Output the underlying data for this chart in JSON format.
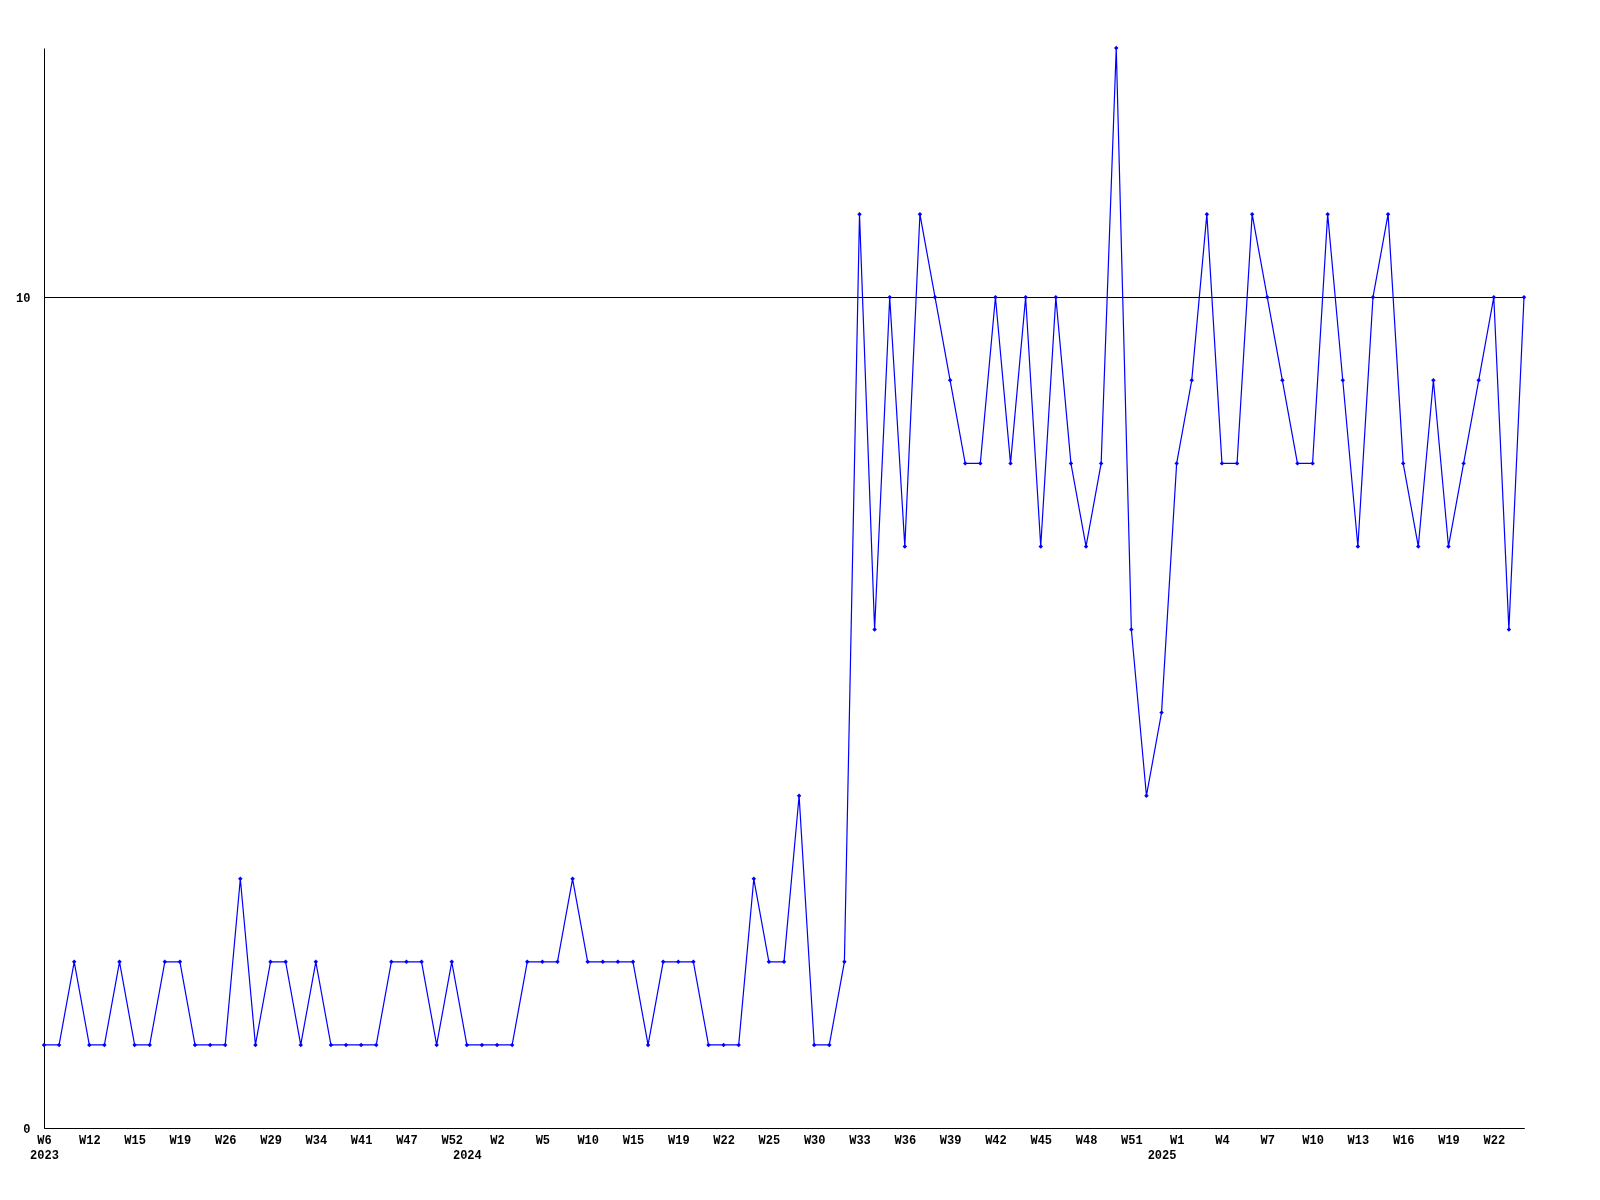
{
  "chart_data": {
    "type": "line",
    "categories": [
      "W6\n2023",
      null,
      null,
      "W12",
      null,
      null,
      "W15",
      null,
      null,
      "W19",
      null,
      null,
      "W26",
      null,
      null,
      "W29",
      null,
      null,
      "W34",
      null,
      null,
      "W41",
      null,
      null,
      "W47",
      null,
      null,
      "W52",
      "\n2024",
      null,
      "W2",
      null,
      null,
      "W5",
      null,
      null,
      "W10",
      null,
      null,
      "W15",
      null,
      null,
      "W19",
      null,
      null,
      "W22",
      null,
      null,
      "W25",
      null,
      null,
      "W30",
      null,
      null,
      "W33",
      null,
      null,
      "W36",
      null,
      null,
      "W39",
      null,
      null,
      "W42",
      null,
      null,
      "W45",
      null,
      null,
      "W48",
      null,
      null,
      "W51",
      null,
      "\n2025",
      "W1",
      null,
      null,
      "W4",
      null,
      null,
      "W7",
      null,
      null,
      "W10",
      null,
      null,
      "W13",
      null,
      null,
      "W16",
      null,
      null,
      "W19",
      null,
      null,
      "W22",
      null,
      null
    ],
    "series": [
      {
        "color": "#0000ff",
        "values": [
          1,
          1,
          2,
          1,
          1,
          2,
          1,
          1,
          2,
          2,
          1,
          1,
          1,
          3,
          1,
          2,
          2,
          1,
          2,
          1,
          1,
          1,
          1,
          2,
          2,
          2,
          1,
          2,
          1,
          1,
          1,
          1,
          2,
          2,
          2,
          3,
          2,
          2,
          2,
          2,
          1,
          2,
          2,
          2,
          1,
          1,
          1,
          3,
          2,
          2,
          4,
          1,
          1,
          2,
          11,
          6,
          10,
          7,
          11,
          10,
          9,
          8,
          8,
          10,
          8,
          10,
          7,
          10,
          8,
          7,
          8,
          13,
          6,
          4,
          5,
          8,
          9,
          11,
          8,
          8,
          11,
          10,
          9,
          8,
          8,
          11,
          9,
          7,
          10,
          11,
          8,
          7,
          9,
          7,
          8,
          9,
          10,
          6,
          10
        ]
      }
    ],
    "ylim": [
      0,
      13
    ],
    "yticks": [
      0,
      10
    ],
    "grid": "y",
    "marker": "diamond",
    "line_style": "solid"
  }
}
